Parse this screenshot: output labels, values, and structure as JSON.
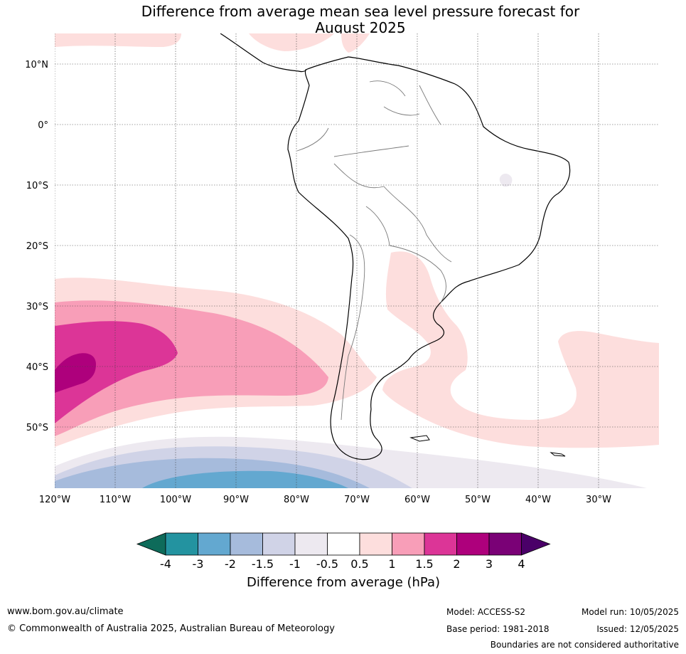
{
  "title": {
    "line1": "Difference from average mean sea level pressure forecast for",
    "line2": "August 2025"
  },
  "map": {
    "lat_labels": [
      "10°N",
      "0°",
      "10°S",
      "20°S",
      "30°S",
      "40°S",
      "50°S"
    ],
    "lon_labels": [
      "120°W",
      "110°W",
      "100°W",
      "90°W",
      "80°W",
      "70°W",
      "60°W",
      "50°W",
      "40°W",
      "30°W"
    ]
  },
  "colorbar": {
    "title": "Difference from average (hPa)",
    "tick_labels": [
      "-4",
      "-3",
      "-2",
      "-1.5",
      "-1",
      "-0.5",
      "0.5",
      "1",
      "1.5",
      "2",
      "3",
      "4"
    ],
    "colors": {
      "lt_-4": "#0e6b5a",
      "-4_-3": "#2393a0",
      "-3_-2": "#63a8d0",
      "-2_-1.5": "#a6bbdc",
      "-1.5_-1": "#d0d3e7",
      "-1_-0.5": "#ede9f0",
      "-0.5_0.5": "#ffffff",
      "0.5_1": "#fddedd",
      "1_1.5": "#f89eb8",
      "1.5_2": "#dc3597",
      "2_3": "#ae007c",
      "3_4": "#7a0176",
      "gt_4": "#4a0068"
    }
  },
  "footer": {
    "website": "www.bom.gov.au/climate",
    "copyright": "© Commonwealth of Australia 2025, Australian Bureau of Meteorology",
    "model": "Model: ACCESS-S2",
    "base_period": "Base period: 1981-2018",
    "model_run": "Model run: 10/05/2025",
    "issued": "Issued: 12/05/2025",
    "disclaimer": "Boundaries are not considered authoritative"
  }
}
